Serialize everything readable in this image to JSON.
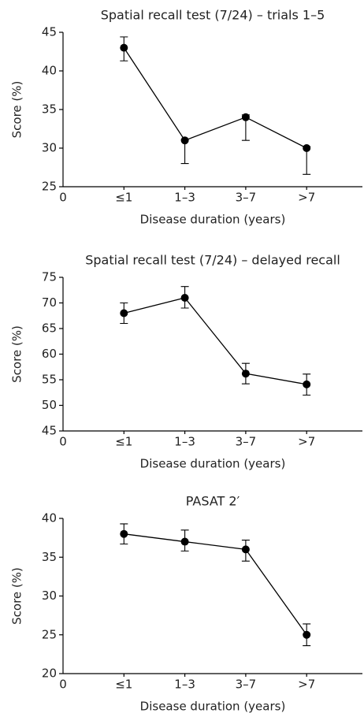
{
  "chart_data": [
    {
      "type": "line",
      "title": "Spatial recall test (7/24) – trials 1–5",
      "xlabel": "Disease duration (years)",
      "ylabel": "Score (%)",
      "categories": [
        "0",
        "≤1",
        "1–3",
        "3–7",
        ">7"
      ],
      "series": [
        {
          "color": "#000000",
          "values": [
            null,
            43,
            31,
            34,
            30
          ],
          "lower": [
            null,
            41.3,
            28,
            31,
            26.6
          ],
          "upper": [
            null,
            44.4,
            31.1,
            34.3,
            30.2
          ]
        }
      ],
      "ylim": [
        25,
        45
      ],
      "yticks": [
        25,
        30,
        35,
        40,
        45
      ]
    },
    {
      "type": "line",
      "title": "Spatial recall test (7/24) – delayed recall",
      "xlabel": "Disease duration (years)",
      "ylabel": "Score (%)",
      "categories": [
        "0",
        "≤1",
        "1–3",
        "3–7",
        ">7"
      ],
      "series": [
        {
          "color": "#000000",
          "values": [
            null,
            68,
            71,
            56.2,
            54.1
          ],
          "lower": [
            null,
            66,
            69,
            54.2,
            52
          ],
          "upper": [
            null,
            70,
            73.2,
            58.2,
            56.1
          ]
        }
      ],
      "ylim": [
        45,
        75
      ],
      "yticks": [
        45,
        50,
        55,
        60,
        65,
        70,
        75
      ]
    },
    {
      "type": "line",
      "title": "PASAT 2′",
      "xlabel": "Disease duration (years)",
      "ylabel": "Score (%)",
      "categories": [
        "0",
        "≤1",
        "1–3",
        "3–7",
        ">7"
      ],
      "series": [
        {
          "color": "#000000",
          "values": [
            null,
            38,
            37,
            36,
            25
          ],
          "lower": [
            null,
            36.7,
            35.8,
            34.5,
            23.6
          ],
          "upper": [
            null,
            39.3,
            38.5,
            37.2,
            26.4
          ]
        }
      ],
      "ylim": [
        20,
        40
      ],
      "yticks": [
        20,
        25,
        30,
        35,
        40
      ]
    }
  ]
}
